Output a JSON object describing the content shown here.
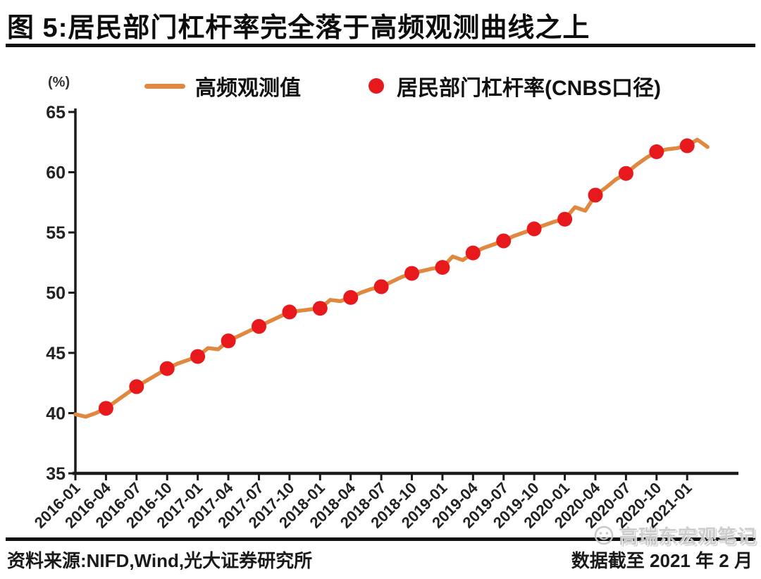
{
  "figure": {
    "title": "图 5:居民部门杠杆率完全落于高频观测曲线之上",
    "unit_label": "(%)",
    "source_note": "资料来源:NIFD,Wind,光大证券研究所",
    "data_cutoff_note": "数据截至 2021 年 2 月",
    "watermark_text": "高瑞东宏观笔记"
  },
  "colors": {
    "line_orange": "#E0883F",
    "dot_red": "#E8191D",
    "axis_black": "#1a1a1a",
    "tick_label": "#222222",
    "rule_black": "#111111",
    "watermark_gray": "#c6c6c6"
  },
  "chart_data": {
    "type": "line",
    "title": "居民部门杠杆率完全落于高频观测曲线之上",
    "xlabel": "",
    "ylabel": "(%)",
    "ylim": [
      35,
      65
    ],
    "grid": false,
    "legend_position": "top",
    "y_ticks": [
      65,
      60,
      55,
      50,
      45,
      40,
      35
    ],
    "x_tick_labels": [
      "2016-01",
      "2016-04",
      "2016-07",
      "2016-10",
      "2017-01",
      "2017-04",
      "2017-07",
      "2017-10",
      "2018-01",
      "2018-04",
      "2018-07",
      "2018-10",
      "2019-01",
      "2019-04",
      "2019-07",
      "2019-10",
      "2020-01",
      "2020-04",
      "2020-07",
      "2020-10",
      "2021-01"
    ],
    "legend": [
      {
        "label": "高频观测值",
        "marker": "line",
        "color": "#E0883F"
      },
      {
        "label": "居民部门杠杆率(CNBS口径)",
        "marker": "dot",
        "color": "#E8191D"
      }
    ],
    "x_unit_note": "months since 2016-01, quarterly x tick spacing of 3 months",
    "series": [
      {
        "name": "高频观测值",
        "type": "line",
        "frequency": "monthly, 2016-01 through 2021-02",
        "points": [
          [
            0,
            39.9
          ],
          [
            1,
            39.7
          ],
          [
            2,
            40.0
          ],
          [
            3,
            40.4
          ],
          [
            4,
            41.0
          ],
          [
            5,
            41.6
          ],
          [
            6,
            42.2
          ],
          [
            7,
            42.7
          ],
          [
            8,
            43.2
          ],
          [
            9,
            43.7
          ],
          [
            10,
            44.1
          ],
          [
            11,
            44.4
          ],
          [
            12,
            44.7
          ],
          [
            13,
            45.4
          ],
          [
            14,
            45.3
          ],
          [
            15,
            46.0
          ],
          [
            16,
            46.4
          ],
          [
            17,
            46.8
          ],
          [
            18,
            47.2
          ],
          [
            19,
            47.6
          ],
          [
            20,
            48.0
          ],
          [
            21,
            48.4
          ],
          [
            22,
            48.5
          ],
          [
            23,
            48.6
          ],
          [
            24,
            48.7
          ],
          [
            25,
            49.4
          ],
          [
            26,
            49.3
          ],
          [
            27,
            49.6
          ],
          [
            28,
            50.0
          ],
          [
            29,
            50.3
          ],
          [
            30,
            50.5
          ],
          [
            31,
            50.9
          ],
          [
            32,
            51.3
          ],
          [
            33,
            51.6
          ],
          [
            34,
            51.8
          ],
          [
            35,
            52.0
          ],
          [
            36,
            52.1
          ],
          [
            37,
            53.0
          ],
          [
            38,
            52.7
          ],
          [
            39,
            53.3
          ],
          [
            40,
            53.7
          ],
          [
            41,
            54.0
          ],
          [
            42,
            54.3
          ],
          [
            43,
            54.7
          ],
          [
            44,
            55.0
          ],
          [
            45,
            55.3
          ],
          [
            46,
            55.6
          ],
          [
            47,
            55.9
          ],
          [
            48,
            56.1
          ],
          [
            49,
            57.1
          ],
          [
            50,
            56.8
          ],
          [
            51,
            58.1
          ],
          [
            52,
            58.7
          ],
          [
            53,
            59.4
          ],
          [
            54,
            59.9
          ],
          [
            55,
            60.6
          ],
          [
            56,
            61.2
          ],
          [
            57,
            61.7
          ],
          [
            58,
            61.9
          ],
          [
            59,
            62.0
          ],
          [
            60,
            62.2
          ],
          [
            61,
            62.7
          ],
          [
            62,
            62.1
          ]
        ]
      },
      {
        "name": "居民部门杠杆率(CNBS口径)",
        "type": "scatter",
        "frequency": "quarterly, plotted at 2016-04 through 2021-01",
        "x_labels": [
          "2016-04",
          "2016-07",
          "2016-10",
          "2017-01",
          "2017-04",
          "2017-07",
          "2017-10",
          "2018-01",
          "2018-04",
          "2018-07",
          "2018-10",
          "2019-01",
          "2019-04",
          "2019-07",
          "2019-10",
          "2020-01",
          "2020-04",
          "2020-07",
          "2020-10",
          "2021-01"
        ],
        "points": [
          [
            3,
            40.4
          ],
          [
            6,
            42.2
          ],
          [
            9,
            43.7
          ],
          [
            12,
            44.7
          ],
          [
            15,
            46.0
          ],
          [
            18,
            47.2
          ],
          [
            21,
            48.4
          ],
          [
            24,
            48.7
          ],
          [
            27,
            49.6
          ],
          [
            30,
            50.5
          ],
          [
            33,
            51.6
          ],
          [
            36,
            52.1
          ],
          [
            39,
            53.3
          ],
          [
            42,
            54.3
          ],
          [
            45,
            55.3
          ],
          [
            48,
            56.1
          ],
          [
            51,
            58.1
          ],
          [
            54,
            59.9
          ],
          [
            57,
            61.7
          ],
          [
            60,
            62.2
          ]
        ]
      }
    ]
  }
}
